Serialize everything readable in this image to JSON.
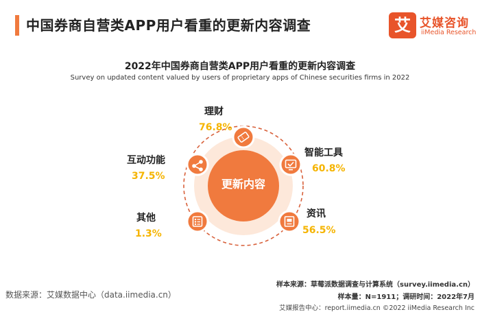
{
  "header": {
    "title": "中国券商自营类APP用户看重的更新内容调查"
  },
  "logo": {
    "mark": "艾",
    "name_cn": "艾媒咨询",
    "name_en": "iiMedia Research"
  },
  "chart_data": {
    "type": "radial",
    "title": "2022年中国券商自营类APP用户看重的更新内容调查",
    "subtitle": "Survey on updated content valued by users of proprietary apps of Chinese securities firms in 2022",
    "center_label": "更新内容",
    "categories": [
      "理财",
      "智能工具",
      "资讯",
      "互动功能",
      "其他"
    ],
    "values": [
      76.8,
      60.8,
      56.5,
      37.5,
      1.3
    ],
    "value_labels": [
      "76.8%",
      "60.8%",
      "56.5%",
      "37.5%",
      "1.3%"
    ],
    "icons": [
      "ticket-icon",
      "screen-check-icon",
      "news-icon",
      "share-icon",
      "list-icon"
    ],
    "accent_color": "#f07a3e",
    "value_color": "#f5b400"
  },
  "footer": {
    "source": "数据来源：艾媒数据中心（data.iimedia.cn）",
    "sample_source": "样本来源：草莓派数据调查与计算系统（survey.iimedia.cn）",
    "sample_info": "样本量：N=1911；调研时间：2022年7月",
    "copyright": "艾媒报告中心：report.iimedia.cn ©2022 iiMedia Research Inc"
  }
}
